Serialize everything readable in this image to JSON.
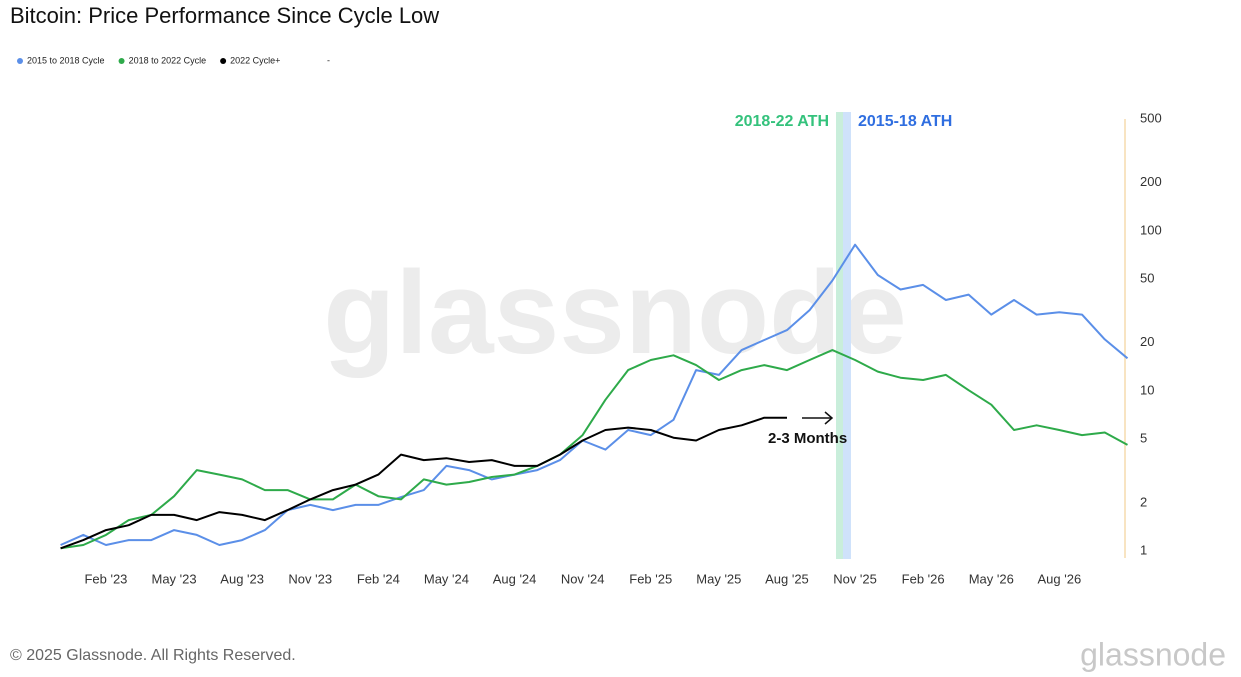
{
  "chart_data": {
    "type": "line",
    "title": "Bitcoin: Price Performance Since Cycle Low",
    "categories": [
      null,
      null,
      "Feb '23",
      null,
      null,
      "May '23",
      null,
      null,
      "Aug '23",
      null,
      null,
      "Nov '23",
      null,
      null,
      "Feb '24",
      null,
      null,
      "May '24",
      null,
      null,
      "Aug '24",
      null,
      null,
      "Nov '24",
      null,
      null,
      "Feb '25",
      null,
      null,
      "May '25",
      null,
      null,
      "Aug '25",
      null,
      null,
      "Nov '25",
      null,
      null,
      "Feb '26",
      null,
      null,
      "May '26",
      null,
      null,
      "Aug '26",
      null,
      null,
      null
    ],
    "series": [
      {
        "name": "2015 to 2018 Cycle",
        "color": "#5b8fe8",
        "values": [
          1.09,
          1.26,
          1.09,
          1.17,
          1.17,
          1.35,
          1.26,
          1.09,
          1.17,
          1.35,
          1.8,
          1.94,
          1.8,
          1.94,
          1.94,
          2.17,
          2.4,
          3.4,
          3.2,
          2.8,
          3.0,
          3.2,
          3.7,
          4.9,
          4.3,
          5.7,
          5.3,
          6.6,
          13.5,
          12.6,
          18,
          20.8,
          24,
          32,
          49,
          82,
          53,
          43,
          46,
          37,
          40,
          30,
          37,
          30,
          31,
          30,
          21,
          16
        ]
      },
      {
        "name": "2018 to 2022 Cycle",
        "color": "#2eaa4a",
        "values": [
          1.04,
          1.09,
          1.26,
          1.56,
          1.68,
          2.2,
          3.2,
          3.0,
          2.8,
          2.4,
          2.4,
          2.1,
          2.1,
          2.6,
          2.2,
          2.1,
          2.8,
          2.6,
          2.7,
          2.9,
          3.0,
          3.4,
          4.0,
          5.3,
          8.8,
          13.5,
          15.6,
          16.7,
          14.5,
          11.7,
          13.5,
          14.5,
          13.5,
          15.6,
          18,
          15.6,
          13.2,
          12.1,
          11.7,
          12.6,
          10.1,
          8.2,
          5.7,
          6.1,
          5.7,
          5.3,
          5.5,
          4.6
        ]
      },
      {
        "name": "2022 Cycle+",
        "color": "#000000",
        "values": [
          1.04,
          1.17,
          1.35,
          1.45,
          1.68,
          1.68,
          1.56,
          1.75,
          1.68,
          1.56,
          1.8,
          2.1,
          2.4,
          2.6,
          3.0,
          4.0,
          3.7,
          3.8,
          3.6,
          3.7,
          3.4,
          3.4,
          4.0,
          4.9,
          5.7,
          5.9,
          5.7,
          5.1,
          4.9,
          5.7,
          6.1,
          6.8,
          6.8,
          null,
          null,
          null,
          null,
          null,
          null,
          null,
          null,
          null,
          null,
          null,
          null,
          null,
          null,
          null
        ]
      }
    ],
    "legend_extra": "-",
    "log_scale": true,
    "ylim": [
      1,
      500
    ],
    "yticks": [
      1,
      2,
      5,
      10,
      20,
      50,
      100,
      200,
      500
    ],
    "annotations": [
      {
        "text": "2018-22 ATH",
        "color": "#34c27c"
      },
      {
        "text": "2015-18 ATH",
        "color": "#2f6ee0"
      },
      {
        "text": "2-3 Months",
        "color": "#111111"
      }
    ],
    "watermark": "glassnode",
    "footer": "© 2025 Glassnode. All Rights Reserved.",
    "logo": "glassnode"
  }
}
